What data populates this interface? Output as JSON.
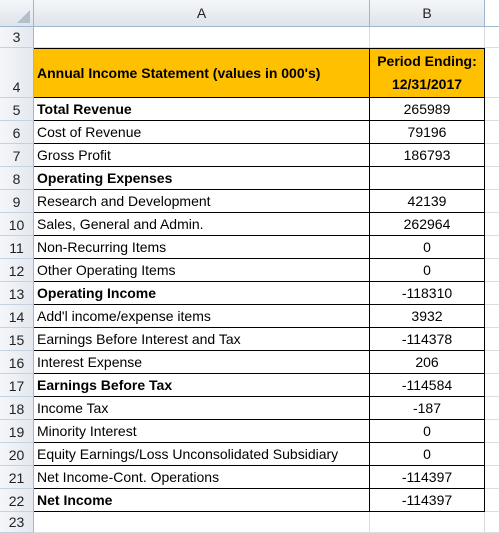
{
  "columns": {
    "a": "A",
    "b": "B"
  },
  "row_numbers": {
    "r3": "3",
    "r4": "4",
    "r23": "23"
  },
  "header": {
    "title": "Annual Income Statement (values in 000's)",
    "period_line1": "Period Ending:",
    "period_line2": "12/31/2017"
  },
  "rows": [
    {
      "num": "5",
      "label": "Total Revenue",
      "value": "265989",
      "bold": true
    },
    {
      "num": "6",
      "label": "Cost of Revenue",
      "value": "79196",
      "bold": false
    },
    {
      "num": "7",
      "label": "Gross Profit",
      "value": "186793",
      "bold": false
    },
    {
      "num": "8",
      "label": "Operating Expenses",
      "value": "",
      "bold": true
    },
    {
      "num": "9",
      "label": "Research and Development",
      "value": "42139",
      "bold": false
    },
    {
      "num": "10",
      "label": "Sales, General and Admin.",
      "value": "262964",
      "bold": false
    },
    {
      "num": "11",
      "label": "Non-Recurring Items",
      "value": "0",
      "bold": false
    },
    {
      "num": "12",
      "label": "Other Operating Items",
      "value": "0",
      "bold": false
    },
    {
      "num": "13",
      "label": "Operating Income",
      "value": "-118310",
      "bold": true
    },
    {
      "num": "14",
      "label": "Add'l income/expense items",
      "value": "3932",
      "bold": false
    },
    {
      "num": "15",
      "label": "Earnings Before Interest and Tax",
      "value": "-114378",
      "bold": false
    },
    {
      "num": "16",
      "label": "Interest Expense",
      "value": "206",
      "bold": false
    },
    {
      "num": "17",
      "label": "Earnings Before Tax",
      "value": "-114584",
      "bold": true
    },
    {
      "num": "18",
      "label": "Income Tax",
      "value": "-187",
      "bold": false
    },
    {
      "num": "19",
      "label": "Minority Interest",
      "value": "0",
      "bold": false
    },
    {
      "num": "20",
      "label": "Equity Earnings/Loss Unconsolidated Subsidiary",
      "value": "0",
      "bold": false
    },
    {
      "num": "21",
      "label": "Net Income-Cont. Operations",
      "value": "-114397",
      "bold": false
    },
    {
      "num": "22",
      "label": "Net Income",
      "value": "-114397",
      "bold": true
    }
  ],
  "colors": {
    "header_fill": "#ffc000",
    "grid_header": "#dfe4ea",
    "grid_line": "#9eb6ce"
  }
}
